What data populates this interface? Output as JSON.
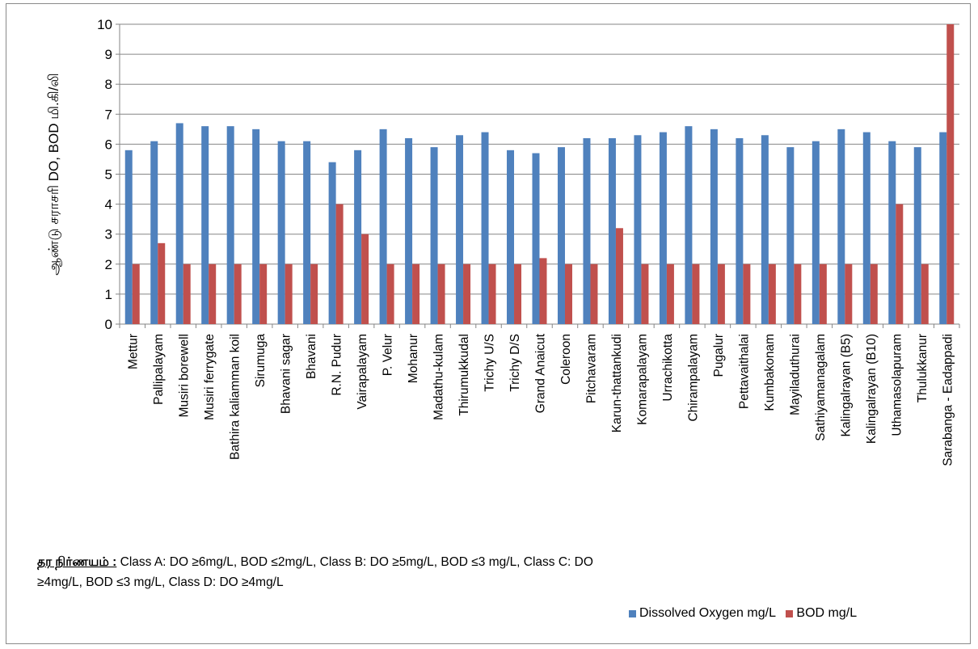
{
  "chart_data": {
    "type": "bar",
    "ylabel": "ஆண்டு சராசரி DO, BOD மி.கி/லி",
    "ylim": [
      0,
      10
    ],
    "yticks": [
      0,
      1,
      2,
      3,
      4,
      5,
      6,
      7,
      8,
      9,
      10
    ],
    "grid": true,
    "legend_position": "bottom-right",
    "categories": [
      "Mettur",
      "Pallipalayam",
      "Musiri borewell",
      "Musiri ferrygate",
      "Bathira kaliamman koil",
      "Sirumuga",
      "Bhavani sagar",
      "Bhavani",
      "R.N. Pudur",
      "Vairapalayam",
      "P. Velur",
      "Mohanur",
      "Madathu-kulam",
      "Thirumukkudal",
      "Trichy U/S",
      "Trichy D/S",
      "Grand Anaicut",
      "Coleroon",
      "Pitchavaram",
      "Karun-thattankudi",
      "Komarapalayam",
      "Urrachikotta",
      "Chirampalayam",
      "Pugalur",
      "Pettavaithalai",
      "Kumbakonam",
      "Mayiladuthurai",
      "Sathiyamanagalam",
      "Kalingalrayan (B5)",
      "Kalingalrayan (B10)",
      "Uthamasolapuram",
      "Thulukkanur",
      "Sarabanga - Eadappadi"
    ],
    "series": [
      {
        "name": "Dissolved Oxygen mg/L",
        "color": "#4f81bd",
        "values": [
          5.8,
          6.1,
          6.7,
          6.6,
          6.6,
          6.5,
          6.1,
          6.1,
          5.4,
          5.8,
          6.5,
          6.2,
          5.9,
          6.3,
          6.4,
          5.8,
          5.7,
          5.9,
          6.2,
          6.2,
          6.3,
          6.4,
          6.6,
          6.5,
          6.2,
          6.3,
          5.9,
          6.1,
          6.5,
          6.4,
          6.1,
          5.9,
          6.4
        ]
      },
      {
        "name": "BOD mg/L",
        "color": "#c0504d",
        "values": [
          2,
          2.7,
          2,
          2,
          2,
          2,
          2,
          2,
          4,
          3,
          2,
          2,
          2,
          2,
          2,
          2,
          2.2,
          2,
          2,
          3.2,
          2,
          2,
          2,
          2,
          2,
          2,
          2,
          2,
          2,
          2,
          4,
          2,
          10
        ]
      }
    ]
  },
  "criteria": {
    "label": "தர நிர்ணயம் :",
    "text": " Class A: DO ≥6mg/L, BOD ≤2mg/L, Class B: DO ≥5mg/L, BOD ≤3 mg/L, Class C: DO ≥4mg/L, BOD ≤3 mg/L,  Class D: DO ≥4mg/L"
  }
}
